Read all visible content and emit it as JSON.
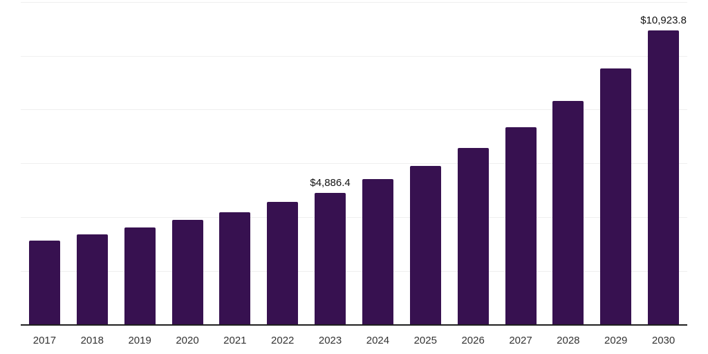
{
  "chart_data": {
    "type": "bar",
    "title": "",
    "xlabel": "",
    "ylabel": "",
    "categories": [
      "2017",
      "2018",
      "2019",
      "2020",
      "2021",
      "2022",
      "2023",
      "2024",
      "2025",
      "2026",
      "2027",
      "2028",
      "2029",
      "2030"
    ],
    "values": [
      3100,
      3340,
      3590,
      3890,
      4170,
      4540,
      4886.4,
      5380,
      5890,
      6560,
      7320,
      8300,
      9510,
      10923.8
    ],
    "data_labels": [
      "",
      "",
      "",
      "",
      "",
      "",
      "$4,886.4",
      "",
      "",
      "",
      "",
      "",
      "",
      "$10,923.8"
    ],
    "ylim": [
      0,
      12000
    ],
    "gridline_step": 2000,
    "grid": "horizontal-only",
    "legend": "none",
    "values_are_estimated_except_labeled": true,
    "colors": {
      "bar": "#371150",
      "background": "#ffffff",
      "gridline": "#efefef",
      "axis_line": "#1f1f1f",
      "tick_label": "#333333",
      "data_label": "#111111"
    }
  }
}
